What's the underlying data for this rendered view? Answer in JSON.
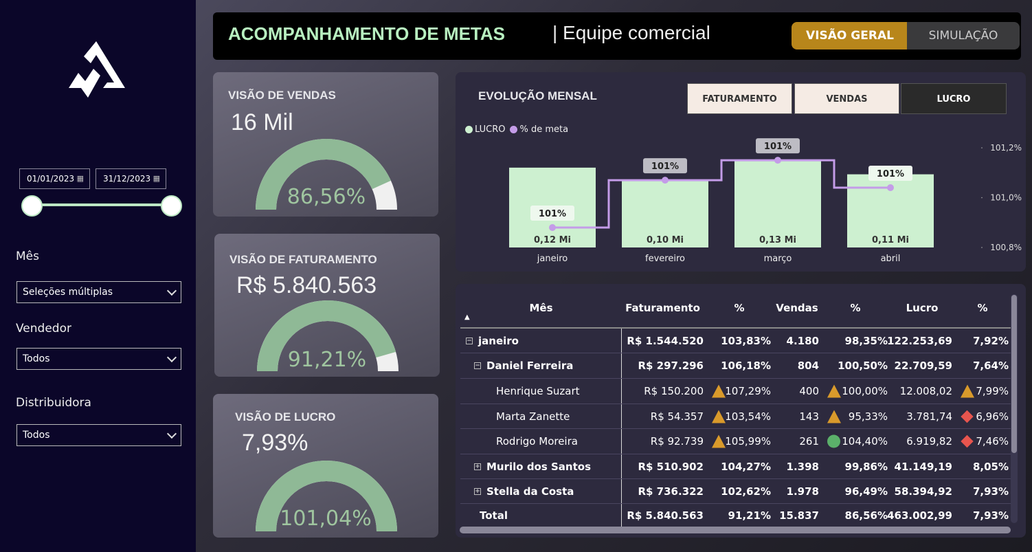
{
  "sidebar": {
    "logo": "logo",
    "date_start": "01/01/2023",
    "date_end": "31/12/2023",
    "date_range_fraction": [
      0,
      1
    ],
    "filters": [
      {
        "label": "Mês",
        "value": "Seleções múltiplas"
      },
      {
        "label": "Vendedor",
        "value": "Todos"
      },
      {
        "label": "Distribuidora",
        "value": "Todos"
      }
    ]
  },
  "header": {
    "title": "ACOMPANHAMENTO DE METAS",
    "subtitle": "| Equipe comercial",
    "toggle": [
      {
        "label": "VISÃO GERAL",
        "active": true
      },
      {
        "label": "SIMULAÇÃO",
        "active": false
      }
    ]
  },
  "colors": {
    "title": "#b8f0c0",
    "accent_gold": "#b8861b",
    "gauge": "#8fb996",
    "bar": "#cdf0d0",
    "line": "#c49ce8",
    "up": "#d99a2b",
    "ok": "#5bb06a",
    "down": "#e8554e"
  },
  "cards": [
    {
      "title": "VISÃO DE VENDAS",
      "value": "16 Mil",
      "pct_label": "86,56%",
      "pct": 86.56
    },
    {
      "title": "VISÃO DE FATURAMENTO",
      "value": "R$ 5.840.563",
      "pct_label": "91,21%",
      "pct": 91.21
    },
    {
      "title": "VISÃO DE LUCRO",
      "value": "7,93%",
      "pct_label": "101,04%",
      "pct": 101.04
    }
  ],
  "chart_panel": {
    "title": "EVOLUÇÃO MENSAL",
    "buttons": [
      {
        "label": "FATURAMENTO",
        "active": false
      },
      {
        "label": "VENDAS",
        "active": false
      },
      {
        "label": "LUCRO",
        "active": true
      }
    ]
  },
  "chart_data": {
    "type": "bar",
    "categories": [
      "janeiro",
      "fevereiro",
      "março",
      "abril"
    ],
    "series": [
      {
        "name": "LUCRO",
        "type": "bar",
        "values": [
          0.12,
          0.1,
          0.13,
          0.11
        ],
        "labels": [
          "0,12 Mi",
          "0,10 Mi",
          "0,13 Mi",
          "0,11 Mi"
        ]
      },
      {
        "name": "% de meta",
        "type": "line",
        "axis": "right",
        "values": [
          100.88,
          101.07,
          101.15,
          101.04
        ],
        "labels": [
          "101%",
          "101%",
          "101%",
          "101%"
        ]
      }
    ],
    "y2_ticks": [
      "101,2%",
      "101,0%",
      "100,8%"
    ],
    "y2lim": [
      100.8,
      101.2
    ],
    "legend": "top-left"
  },
  "table": {
    "columns": [
      "Mês",
      "Faturamento",
      "%",
      "Vendas",
      "%",
      "Lucro",
      "%"
    ],
    "rows": [
      {
        "level": 0,
        "exp": "⊟",
        "name": "janeiro",
        "bold": true,
        "cells": [
          "R$ 1.544.520",
          "103,83%",
          "4.180",
          "98,35%",
          "122.253,69",
          "7,92%"
        ],
        "icons": [
          null,
          null,
          null
        ]
      },
      {
        "level": 1,
        "exp": "⊟",
        "name": "Daniel Ferreira",
        "bold": true,
        "cells": [
          "R$ 297.296",
          "106,18%",
          "804",
          "100,50%",
          "22.709,59",
          "7,64%"
        ],
        "icons": [
          null,
          null,
          null
        ]
      },
      {
        "level": 2,
        "exp": "",
        "name": "Henrique Suzart",
        "bold": false,
        "cells": [
          "R$ 150.200",
          "107,29%",
          "400",
          "100,00%",
          "12.008,02",
          "7,99%"
        ],
        "icons": [
          "triangle",
          "triangle",
          "triangle"
        ]
      },
      {
        "level": 2,
        "exp": "",
        "name": "Marta Zanette",
        "bold": false,
        "cells": [
          "R$ 54.357",
          "103,54%",
          "143",
          "95,33%",
          "3.781,74",
          "6,96%"
        ],
        "icons": [
          "triangle",
          "triangle",
          "diamond"
        ]
      },
      {
        "level": 2,
        "exp": "",
        "name": "Rodrigo Moreira",
        "bold": false,
        "cells": [
          "R$ 92.739",
          "105,99%",
          "261",
          "104,40%",
          "6.919,82",
          "7,46%"
        ],
        "icons": [
          "triangle",
          "circle",
          "diamond"
        ]
      },
      {
        "level": 1,
        "exp": "⊞",
        "name": "Murilo dos Santos",
        "bold": true,
        "cells": [
          "R$ 510.902",
          "104,27%",
          "1.398",
          "99,86%",
          "41.149,19",
          "8,05%"
        ],
        "icons": [
          null,
          null,
          null
        ]
      },
      {
        "level": 1,
        "exp": "⊞",
        "name": "Stella da Costa",
        "bold": true,
        "cells": [
          "R$ 736.322",
          "102,62%",
          "1.978",
          "96,49%",
          "58.394,92",
          "7,93%"
        ],
        "icons": [
          null,
          null,
          null
        ]
      },
      {
        "level": 0,
        "exp": "",
        "name": "Total",
        "bold": true,
        "cells": [
          "R$ 5.840.563",
          "91,21%",
          "15.837",
          "86,56%",
          "463.002,99",
          "7,93%"
        ],
        "icons": [
          null,
          null,
          null
        ]
      }
    ]
  }
}
